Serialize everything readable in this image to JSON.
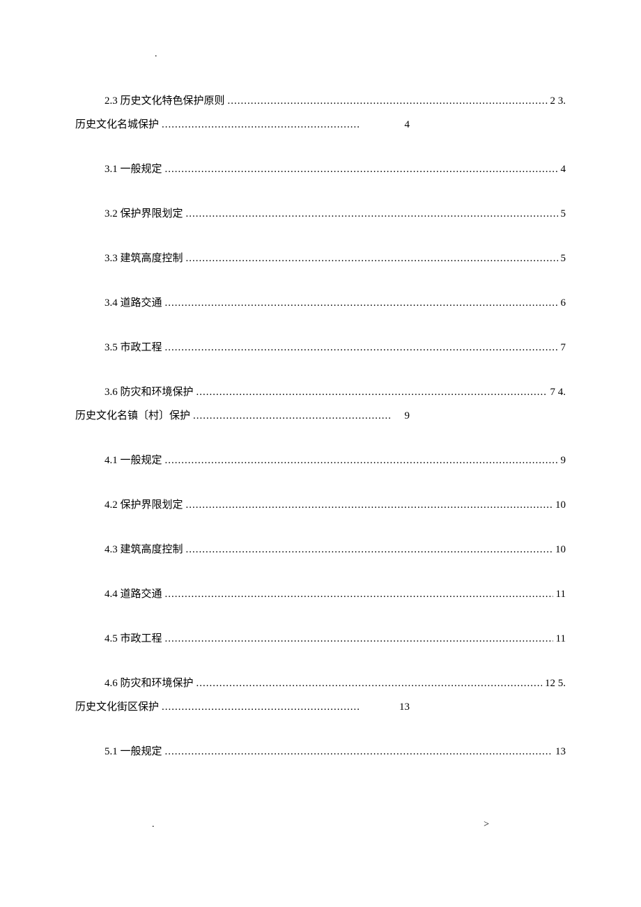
{
  "topMark": ".",
  "dots": "..............................................................................................................................",
  "entries": [
    {
      "label": "2.3 历史文化特色保护原则",
      "page": "2 3.",
      "indent": "sub",
      "wrapLabel": "历史文化名城保护",
      "wrapPage": "4"
    },
    {
      "label": "3.1 一般规定",
      "page": "4",
      "indent": "sub"
    },
    {
      "label": "3.2 保护界限划定",
      "page": "5",
      "indent": "sub"
    },
    {
      "label": "3.3 建筑高度控制",
      "page": "5",
      "indent": "sub"
    },
    {
      "label": "3.4 道路交通",
      "page": "6",
      "indent": "sub"
    },
    {
      "label": "3.5 市政工程",
      "page": "7",
      "indent": "sub"
    },
    {
      "label": "3.6 防灾和环境保护",
      "page": "7 4.",
      "indent": "sub",
      "wrapLabel": "历史文化名镇〔村〕保护",
      "wrapPage": "9"
    },
    {
      "label": "4.1 一般规定",
      "page": "9",
      "indent": "sub"
    },
    {
      "label": "4.2 保护界限划定",
      "page": "10",
      "indent": "sub"
    },
    {
      "label": "4.3 建筑高度控制",
      "page": "10",
      "indent": "sub"
    },
    {
      "label": "4.4 道路交通",
      "page": "11",
      "indent": "sub"
    },
    {
      "label": "4.5 市政工程",
      "page": "11",
      "indent": "sub"
    },
    {
      "label": "4.6 防灾和环境保护",
      "page": "12 5.",
      "indent": "sub",
      "wrapLabel": "历史文化街区保护",
      "wrapPage": "13"
    },
    {
      "label": "5.1 一般规定",
      "page": "13",
      "indent": "sub"
    }
  ],
  "bottomLeft": ".",
  "bottomRight": ">",
  "colors": {
    "background": "#ffffff",
    "text": "#000000"
  },
  "typography": {
    "fontFamily": "SimSun",
    "fontSize": 15,
    "lineHeight": 2.0
  }
}
